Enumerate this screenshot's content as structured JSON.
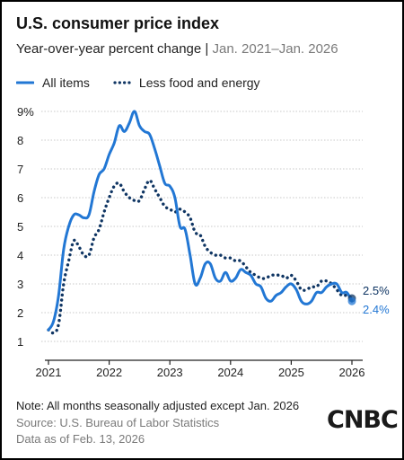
{
  "header": {
    "title": "U.S. consumer price index",
    "subtitle_main": "Year-over-year percent change",
    "subtitle_sep": "|",
    "subtitle_range": "Jan. 2021–Jan. 2026"
  },
  "footer": {
    "note": "Note: All months seasonally adjusted except Jan. 2026",
    "source": "Source: U.S. Bureau of Labor Statistics",
    "as_of": "Data as of Feb. 13, 2026",
    "logo": "CNBC"
  },
  "colors": {
    "all_items": "#2277d4",
    "core": "#0f3563",
    "grid": "#c8c8c8",
    "axis": "#222222"
  },
  "chart_data": {
    "type": "line",
    "x_start": "2021-01",
    "x_end": "2026-01",
    "y_lim": [
      1,
      9
    ],
    "y_ticks": [
      {
        "value": 1,
        "label": "1"
      },
      {
        "value": 2,
        "label": "2"
      },
      {
        "value": 3,
        "label": "3"
      },
      {
        "value": 4,
        "label": "4"
      },
      {
        "value": 5,
        "label": "5"
      },
      {
        "value": 6,
        "label": "6"
      },
      {
        "value": 7,
        "label": "7"
      },
      {
        "value": 8,
        "label": "8"
      },
      {
        "value": 9,
        "label": "9%"
      }
    ],
    "x_ticks": [
      {
        "year": 2021,
        "label": "2021"
      },
      {
        "year": 2022,
        "label": "2022"
      },
      {
        "year": 2023,
        "label": "2023"
      },
      {
        "year": 2024,
        "label": "2024"
      },
      {
        "year": 2025,
        "label": "2025"
      },
      {
        "year": 2026,
        "label": "2026"
      }
    ],
    "grid": "horizontal",
    "legend_position": "top-left",
    "series": [
      {
        "name": "All items",
        "style": "solid",
        "end_label": "2.4%",
        "values": [
          1.4,
          1.7,
          2.6,
          4.2,
          5.0,
          5.4,
          5.4,
          5.3,
          5.4,
          6.2,
          6.8,
          7.0,
          7.5,
          7.9,
          8.5,
          8.3,
          8.6,
          9.0,
          8.5,
          8.3,
          8.2,
          7.7,
          7.1,
          6.5,
          6.4,
          6.0,
          5.0,
          4.9,
          4.0,
          3.0,
          3.2,
          3.7,
          3.7,
          3.2,
          3.1,
          3.4,
          3.1,
          3.2,
          3.5,
          3.4,
          3.3,
          3.0,
          2.9,
          2.5,
          2.4,
          2.6,
          2.7,
          2.9,
          3.0,
          2.8,
          2.4,
          2.3,
          2.4,
          2.7,
          2.7,
          2.9,
          3.0,
          3.0,
          2.7,
          2.7,
          2.4
        ]
      },
      {
        "name": "Less food and energy",
        "style": "dotted",
        "end_label": "2.5%",
        "values": [
          1.4,
          1.3,
          1.6,
          3.0,
          3.8,
          4.5,
          4.3,
          4.0,
          4.0,
          4.6,
          4.9,
          5.5,
          6.0,
          6.4,
          6.5,
          6.2,
          6.0,
          5.9,
          5.9,
          6.3,
          6.6,
          6.3,
          6.0,
          5.7,
          5.6,
          5.5,
          5.6,
          5.5,
          5.3,
          4.8,
          4.7,
          4.3,
          4.1,
          4.0,
          4.0,
          3.9,
          3.9,
          3.8,
          3.8,
          3.6,
          3.4,
          3.3,
          3.2,
          3.2,
          3.3,
          3.3,
          3.3,
          3.2,
          3.3,
          3.1,
          2.8,
          2.8,
          2.9,
          2.9,
          3.1,
          3.1,
          3.0,
          2.8,
          2.6,
          2.6,
          2.5
        ]
      }
    ]
  }
}
